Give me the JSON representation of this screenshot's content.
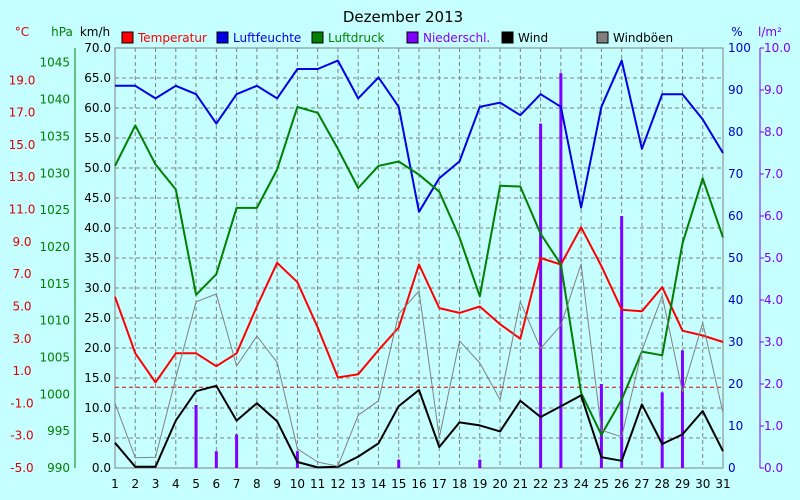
{
  "chart_data": {
    "type": "line",
    "title": "Dezember 2013",
    "x": [
      1,
      2,
      3,
      4,
      5,
      6,
      7,
      8,
      9,
      10,
      11,
      12,
      13,
      14,
      15,
      16,
      17,
      18,
      19,
      20,
      21,
      22,
      23,
      24,
      25,
      26,
      27,
      28,
      29,
      30,
      31
    ],
    "axes": {
      "temperature": {
        "unit": "°C",
        "ylim": [
          -5.0,
          21.0
        ],
        "ticks": [
          -5.0,
          -3.0,
          -1.0,
          1.0,
          3.0,
          5.0,
          7.0,
          9.0,
          11.0,
          13.0,
          15.0,
          17.0,
          19.0
        ],
        "color": "#e00000"
      },
      "pressure": {
        "unit": "hPa",
        "ylim": [
          990,
          1047
        ],
        "ticks": [
          990,
          995,
          1000,
          1005,
          1010,
          1015,
          1020,
          1025,
          1030,
          1035,
          1040,
          1045
        ],
        "color": "#008000"
      },
      "wind": {
        "unit": "km/h",
        "ylim": [
          0,
          70
        ],
        "ticks": [
          0.0,
          5.0,
          10.0,
          15.0,
          20.0,
          25.0,
          30.0,
          35.0,
          40.0,
          45.0,
          50.0,
          55.0,
          60.0,
          65.0,
          70.0
        ],
        "color": "#000000"
      },
      "humidity": {
        "unit": "%",
        "ylim": [
          0,
          100
        ],
        "ticks": [
          0,
          10,
          20,
          30,
          40,
          50,
          60,
          70,
          80,
          90,
          100
        ],
        "color": "#0000c0"
      },
      "precipitation": {
        "unit": "l/m²",
        "ylim": [
          0,
          10
        ],
        "ticks": [
          0.0,
          1.0,
          2.0,
          3.0,
          4.0,
          5.0,
          6.0,
          7.0,
          8.0,
          9.0,
          10.0
        ],
        "color": "#8000ff"
      }
    },
    "grid": true,
    "legend": "top",
    "series": [
      {
        "name": "Temperatur",
        "axis": "temperature",
        "kind": "line",
        "color": "#ff0000",
        "values": [
          5.6,
          2.1,
          0.3,
          2.1,
          2.1,
          1.3,
          2.1,
          5.0,
          7.7,
          6.5,
          3.7,
          0.6,
          0.8,
          2.3,
          3.7,
          7.6,
          4.9,
          4.6,
          5.0,
          3.9,
          3.0,
          8.0,
          7.6,
          9.9,
          7.5,
          4.8,
          4.7,
          6.2,
          3.5,
          3.2,
          2.8
        ],
        "line_width": 2
      },
      {
        "name": "Luftfeuchte",
        "axis": "humidity",
        "kind": "line",
        "color": "#0000e6",
        "values": [
          91,
          91,
          88,
          91,
          89,
          82,
          89,
          91,
          88,
          95,
          95,
          97,
          88,
          93,
          86,
          61,
          69,
          73,
          86,
          87,
          84,
          89,
          86,
          62,
          86,
          97,
          76,
          89,
          89,
          83,
          75
        ],
        "line_width": 2
      },
      {
        "name": "Luftdruck",
        "axis": "pressure",
        "kind": "line",
        "color": "#008000",
        "values": [
          1031,
          1036.5,
          1031.2,
          1027.8,
          1013.5,
          1016.3,
          1025.3,
          1025.3,
          1030.5,
          1039,
          1038.2,
          1033.3,
          1028,
          1031,
          1031.6,
          1029.8,
          1027.5,
          1021.3,
          1013.3,
          1028.3,
          1028.2,
          1021.8,
          1017.6,
          1000.2,
          994.5,
          999.3,
          1005.8,
          1005.3,
          1020.5,
          1029.3,
          1021.3
        ],
        "line_width": 2
      },
      {
        "name": "Wind",
        "axis": "wind",
        "kind": "line",
        "color": "#000000",
        "values": [
          4.2,
          0.2,
          0.2,
          7.9,
          12.8,
          13.7,
          7.9,
          10.8,
          7.8,
          1.0,
          0.1,
          0.2,
          1.9,
          4.1,
          10.3,
          13.0,
          3.5,
          7.6,
          7.1,
          6.1,
          11.2,
          8.5,
          10.3,
          12.1,
          1.8,
          1.2,
          10.6,
          4.0,
          5.6,
          9.5,
          2.8
        ],
        "line_width": 2
      },
      {
        "name": "Windböen",
        "axis": "wind",
        "kind": "line",
        "color": "#808080",
        "values": [
          10.8,
          1.7,
          1.8,
          15.0,
          27.7,
          29.0,
          17.0,
          22.0,
          17.6,
          3.2,
          1.0,
          0.3,
          8.8,
          11.2,
          25.7,
          29.5,
          5.1,
          21.2,
          17.5,
          11.4,
          27.7,
          19.9,
          23.8,
          34.0,
          6.3,
          5.2,
          19.6,
          28.7,
          12.7,
          24.2,
          9.2
        ],
        "line_width": 1
      },
      {
        "name": "Niederschl.",
        "axis": "precipitation",
        "kind": "bar",
        "color": "#8000ff",
        "values": [
          0,
          0,
          0,
          0,
          1.5,
          0.4,
          0.8,
          0,
          0,
          0.4,
          0,
          0,
          0,
          0,
          0.2,
          0,
          0,
          0,
          0.2,
          0,
          0,
          8.2,
          9.4,
          0,
          2.0,
          6.0,
          0,
          1.8,
          2.8,
          0,
          0
        ]
      }
    ]
  }
}
